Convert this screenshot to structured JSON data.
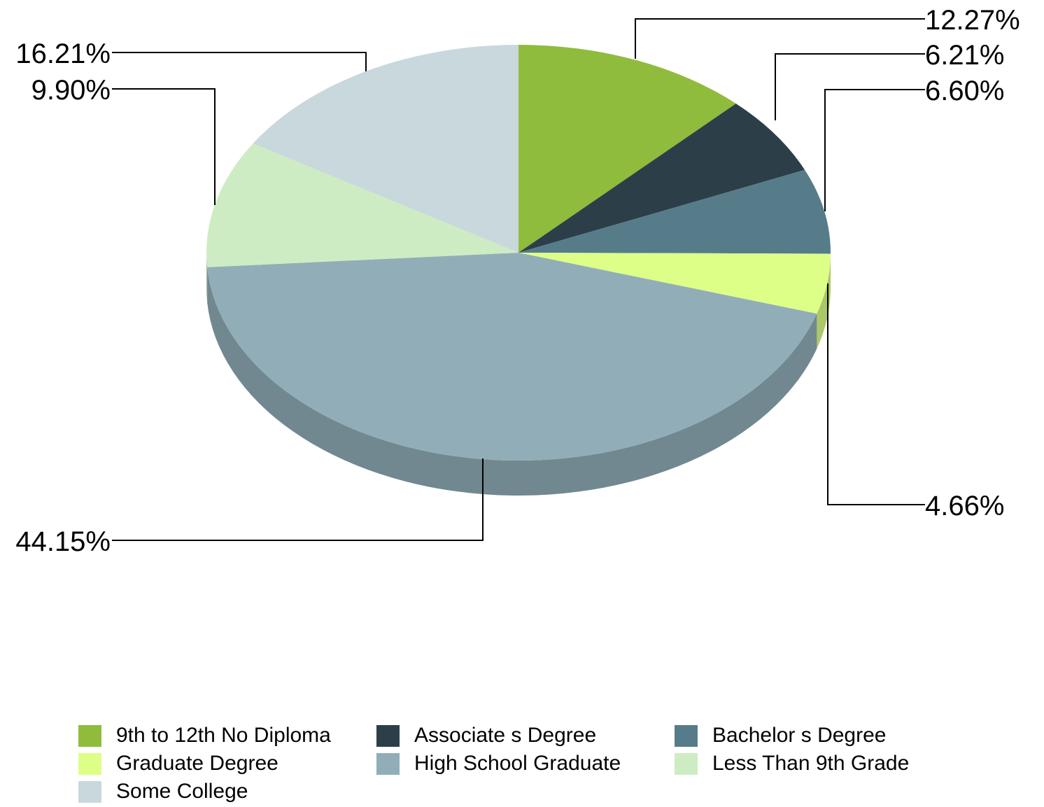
{
  "chart_data": {
    "type": "pie",
    "title": "",
    "slices": [
      {
        "name": "9th to 12th No Diploma",
        "value": 12.27,
        "label": "12.27%",
        "color": "#8fbc3c"
      },
      {
        "name": "Associate s Degree",
        "value": 6.21,
        "label": "6.21%",
        "color": "#2c3f49"
      },
      {
        "name": "Bachelor s Degree",
        "value": 6.6,
        "label": "6.60%",
        "color": "#577c89"
      },
      {
        "name": "Graduate Degree",
        "value": 4.66,
        "label": "4.66%",
        "color": "#ddff88"
      },
      {
        "name": "High School Graduate",
        "value": 44.15,
        "label": "44.15%",
        "color": "#91aeb8"
      },
      {
        "name": "Less Than 9th Grade",
        "value": 9.9,
        "label": "9.90%",
        "color": "#ceecc3"
      },
      {
        "name": "Some College",
        "value": 16.21,
        "label": "16.21%",
        "color": "#c9d8dd"
      }
    ],
    "legend_position": "bottom"
  }
}
